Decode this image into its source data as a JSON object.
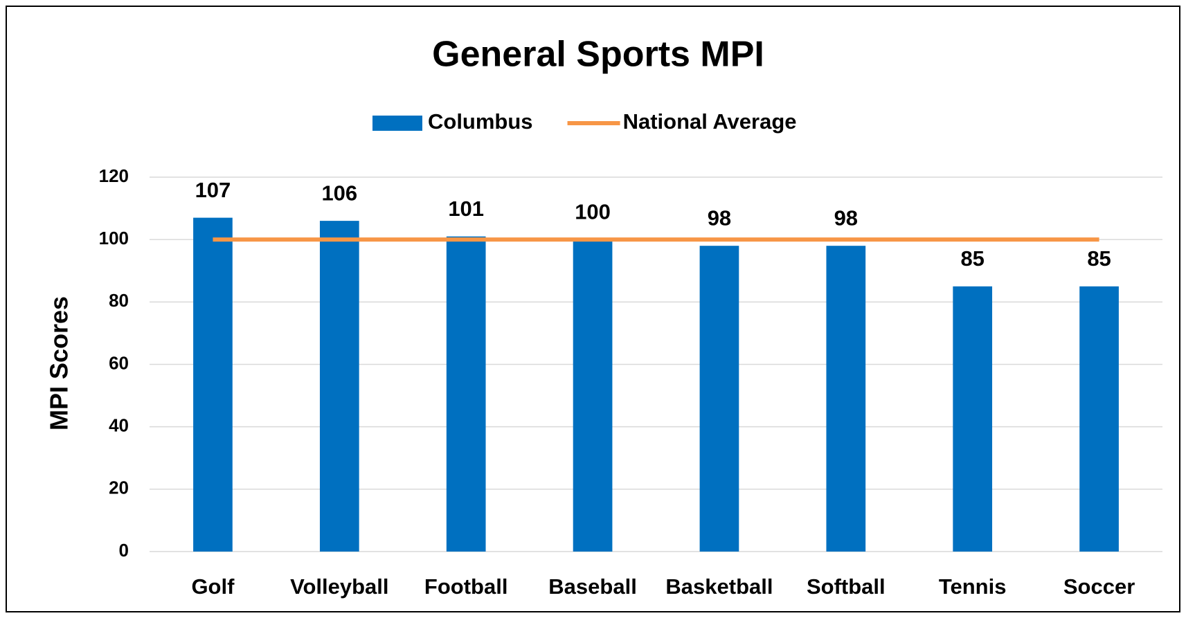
{
  "chart_data": {
    "type": "bar",
    "title": "General Sports MPI",
    "y_label": "MPI Scores",
    "categories": [
      "Golf",
      "Volleyball",
      "Football",
      "Baseball",
      "Basketball",
      "Softball",
      "Tennis",
      "Soccer"
    ],
    "series": [
      {
        "name": "Columbus",
        "type": "bar",
        "color": "#0070c0",
        "values": [
          107,
          106,
          101,
          100,
          98,
          98,
          85,
          85
        ]
      },
      {
        "name": "National Average",
        "type": "line",
        "color": "#f79646",
        "values": [
          100,
          100,
          100,
          100,
          100,
          100,
          100,
          100
        ]
      }
    ],
    "ylim": [
      0,
      120
    ],
    "yticks": [
      0,
      20,
      40,
      60,
      80,
      100,
      120
    ],
    "grid": true,
    "legend": "top"
  }
}
